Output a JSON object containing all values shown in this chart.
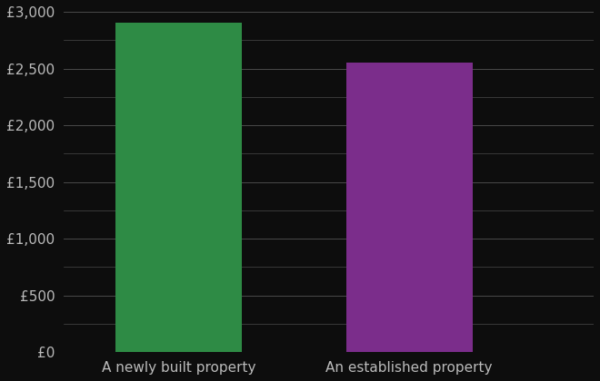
{
  "categories": [
    "A newly built property",
    "An established property"
  ],
  "values": [
    2900,
    2554
  ],
  "bar_colors": [
    "#2e8b45",
    "#7b2d8b"
  ],
  "background_color": "#0d0d0d",
  "text_color": "#bbbbbb",
  "grid_color": "#4a4a4a",
  "ylim": [
    0,
    3000
  ],
  "yticks": [
    0,
    500,
    1000,
    1500,
    2000,
    2500,
    3000
  ],
  "ytick_labels": [
    "£0",
    "£500",
    "£1,000",
    "£1,500",
    "£2,000",
    "£2,500",
    "£3,000"
  ],
  "bar_width": 0.55,
  "tick_fontsize": 11,
  "xlabel_fontsize": 11,
  "x_positions": [
    1,
    2
  ],
  "xlim": [
    0.5,
    2.8
  ]
}
